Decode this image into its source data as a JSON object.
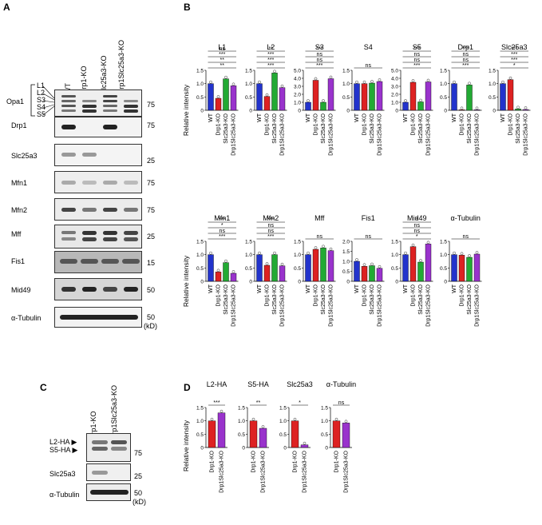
{
  "panels": {
    "A": "A",
    "B": "B",
    "C": "C",
    "D": "D"
  },
  "blotA": {
    "columns": [
      "WT",
      "Drp1-KO",
      "Slc25a3-KO",
      "Drp1Slc25a3-KO"
    ],
    "rows": [
      "Opa1",
      "Drp1",
      "Slc25a3",
      "Mfn1",
      "Mfn2",
      "Mff",
      "Fis1",
      "Mid49",
      "α-Tubulin"
    ],
    "opa1_bands": [
      "L1",
      "L2",
      "S3",
      "S4",
      "S5"
    ],
    "markers": [
      "75",
      "75",
      "25",
      "75",
      "75",
      "25",
      "15",
      "50",
      "50"
    ],
    "unit": "(kD)"
  },
  "blotC": {
    "columns": [
      "Drp1-KO",
      "Drp1Slc25a3-KO"
    ],
    "arrows": [
      "L2-HA",
      "S5-HA"
    ],
    "rows": [
      "Slc25a3",
      "α-Tubulin"
    ],
    "markers": [
      "75",
      "25",
      "50"
    ],
    "unit": "(kD)"
  },
  "colors": {
    "wt": "#2233cc",
    "drp1": "#dd2222",
    "slc": "#22aa33",
    "dbl": "#9933cc"
  },
  "ylabel": "Relative intensity",
  "xcats4": [
    "WT",
    "Drp1-KO",
    "Slc25a3-KO",
    "Drp1Slc25a3-KO"
  ],
  "xcats2": [
    "Drp1-KO",
    "Drp1Slc25a3-KO"
  ],
  "chart_data": [
    {
      "type": "bar",
      "title": "L1",
      "ylim": [
        0,
        1.5
      ],
      "ticks": [
        "0",
        "0.5",
        "1.0",
        "1.5"
      ],
      "values": [
        1.0,
        0.45,
        1.18,
        0.92
      ],
      "sig": [
        "**",
        "**",
        "***",
        "ns"
      ]
    },
    {
      "type": "bar",
      "title": "L2",
      "ylim": [
        0,
        1.5
      ],
      "ticks": [
        "0",
        "0.5",
        "1.0",
        "1.5"
      ],
      "values": [
        1.0,
        0.52,
        1.4,
        0.85
      ],
      "sig": [
        "***",
        "***",
        "***",
        "**"
      ]
    },
    {
      "type": "bar",
      "title": "S3",
      "ylim": [
        0,
        5.0
      ],
      "ticks": [
        "0",
        "1.0",
        "2.0",
        "3.0",
        "4.0",
        "5.0"
      ],
      "values": [
        1.0,
        3.75,
        1.0,
        3.95
      ],
      "sig": [
        "***",
        "ns",
        "ns",
        "***"
      ]
    },
    {
      "type": "bar",
      "title": "S4",
      "ylim": [
        0,
        1.5
      ],
      "ticks": [
        "0",
        "0.5",
        "1.0",
        "1.5"
      ],
      "values": [
        1.0,
        1.0,
        1.02,
        1.08
      ],
      "sig": [
        "ns"
      ]
    },
    {
      "type": "bar",
      "title": "S5",
      "ylim": [
        0,
        5.0
      ],
      "ticks": [
        "0",
        "1.0",
        "2.0",
        "3.0",
        "4.0",
        "5.0"
      ],
      "values": [
        1.0,
        3.5,
        1.05,
        3.55
      ],
      "sig": [
        "***",
        "ns",
        "ns",
        "***"
      ]
    },
    {
      "type": "bar",
      "title": "Drp1",
      "ylim": [
        0,
        1.5
      ],
      "ticks": [
        "0",
        "0.5",
        "1.0",
        "1.5"
      ],
      "values": [
        1.0,
        0.02,
        0.95,
        0.02
      ],
      "sig": [
        "***",
        "ns",
        "ns",
        "***"
      ]
    },
    {
      "type": "bar",
      "title": "Slc25a3",
      "ylim": [
        0,
        1.5
      ],
      "ticks": [
        "0",
        "0.5",
        "1.0",
        "1.5"
      ],
      "values": [
        1.0,
        1.15,
        0.05,
        0.03
      ],
      "sig": [
        "*",
        "***",
        "***",
        "***"
      ]
    },
    {
      "type": "bar",
      "title": "Mfn1",
      "ylim": [
        0,
        1.5
      ],
      "ticks": [
        "0",
        "0.5",
        "1.0",
        "1.5"
      ],
      "values": [
        1.0,
        0.35,
        0.7,
        0.3
      ],
      "sig": [
        "***",
        "ns",
        "*",
        "***"
      ]
    },
    {
      "type": "bar",
      "title": "Mfn2",
      "ylim": [
        0,
        1.5
      ],
      "ticks": [
        "0",
        "0.5",
        "1.0",
        "1.5"
      ],
      "values": [
        1.0,
        0.6,
        1.0,
        0.58
      ],
      "sig": [
        "***",
        "ns",
        "ns",
        "***"
      ]
    },
    {
      "type": "bar",
      "title": "Mff",
      "ylim": [
        0,
        1.5
      ],
      "ticks": [
        "0",
        "0.5",
        "1.0",
        "1.5"
      ],
      "values": [
        1.0,
        1.2,
        1.25,
        1.15
      ],
      "sig": [
        "ns"
      ]
    },
    {
      "type": "bar",
      "title": "Fis1",
      "ylim": [
        0,
        2.0
      ],
      "ticks": [
        "0",
        "0.5",
        "1.0",
        "1.5",
        "2.0"
      ],
      "values": [
        1.0,
        0.75,
        0.78,
        0.65
      ],
      "sig": [
        "ns"
      ]
    },
    {
      "type": "bar",
      "title": "Mid49",
      "ylim": [
        0,
        1.5
      ],
      "ticks": [
        "0",
        "0.5",
        "1.0",
        "1.5"
      ],
      "values": [
        1.0,
        1.3,
        0.72,
        1.4
      ],
      "sig": [
        "*",
        "ns",
        "ns",
        "*"
      ]
    },
    {
      "type": "bar",
      "title": "α-Tubulin",
      "ylim": [
        0,
        1.5
      ],
      "ticks": [
        "0",
        "0.5",
        "1.0",
        "1.5"
      ],
      "values": [
        1.0,
        0.98,
        0.9,
        1.02
      ],
      "sig": [
        "ns"
      ]
    },
    {
      "type": "bar",
      "title": "L2-HA",
      "ylim": [
        0,
        1.5
      ],
      "ticks": [
        "0",
        "0.5",
        "1.0",
        "1.5"
      ],
      "values": [
        1.0,
        1.3
      ],
      "sig": [
        "***"
      ]
    },
    {
      "type": "bar",
      "title": "S5-HA",
      "ylim": [
        0,
        1.5
      ],
      "ticks": [
        "0",
        "0.5",
        "1.0",
        "1.5"
      ],
      "values": [
        1.0,
        0.72
      ],
      "sig": [
        "**"
      ]
    },
    {
      "type": "bar",
      "title": "Slc25a3",
      "ylim": [
        0,
        1.5
      ],
      "ticks": [
        "0",
        "0.5",
        "1.0",
        "1.5"
      ],
      "values": [
        1.0,
        0.1
      ],
      "sig": [
        "*"
      ]
    },
    {
      "type": "bar",
      "title": "α-Tubulin",
      "ylim": [
        0,
        1.5
      ],
      "ticks": [
        "0",
        "0.5",
        "1.0",
        "1.5"
      ],
      "values": [
        1.0,
        0.92
      ],
      "sig": [
        "ns"
      ]
    }
  ]
}
